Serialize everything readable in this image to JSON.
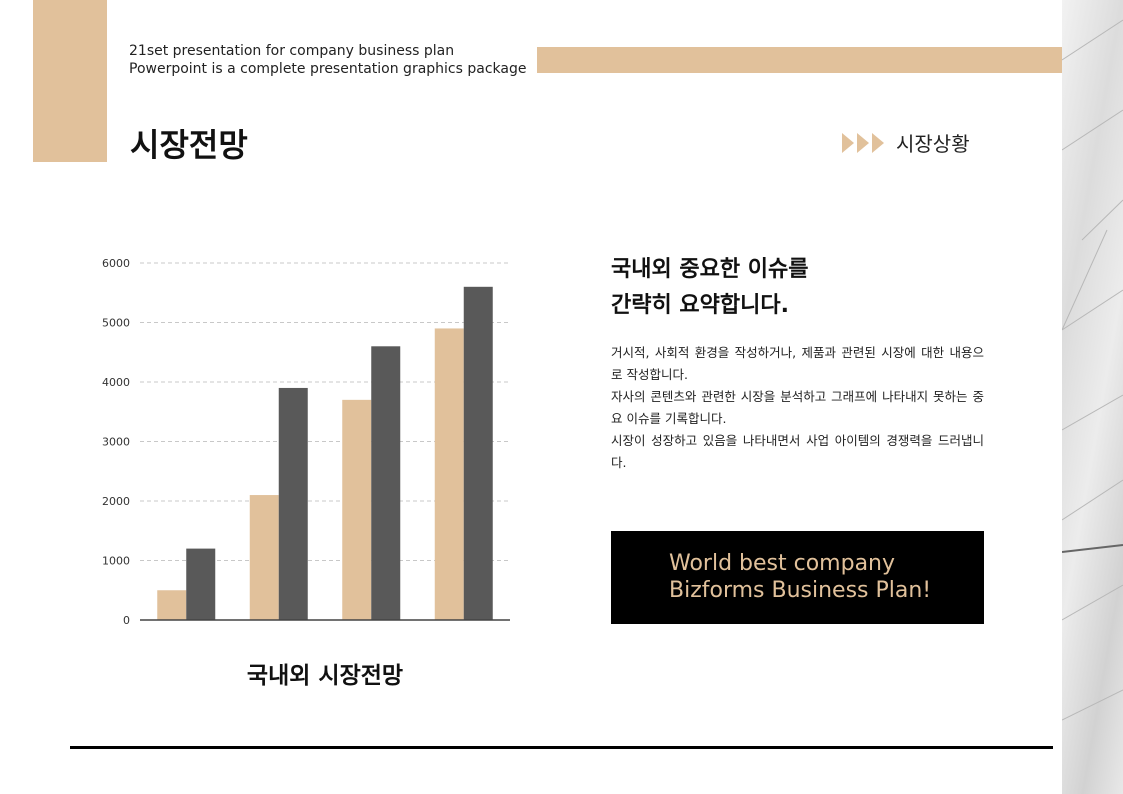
{
  "header": {
    "subtitle_lines": [
      "21set presentation for company business plan",
      "Powerpoint is a  complete presentation graphics package"
    ],
    "title": "시장전망",
    "section_label": "시장상황"
  },
  "content": {
    "headline_lines": [
      "국내외 중요한 이슈를",
      "간략히 요약합니다."
    ],
    "paragraphs": [
      "거시적, 사회적 환경을 작성하거나, 제품과 관련된 시장에 대한 내용으로 작성합니다.",
      "자사의 콘텐츠와 관련한 시장을 분석하고 그래프에 나타내지 못하는 중요 이슈를 기록합니다.",
      "시장이 성장하고 있음을 나타내면서 사업 아이템의 경쟁력을 드러냅니다."
    ],
    "promo_lines": [
      "World best company",
      "Bizforms Business Plan!"
    ]
  },
  "chart_data": {
    "type": "bar",
    "title": "국내외 시장전망",
    "categories": [
      "",
      "",
      "",
      ""
    ],
    "series": [
      {
        "values": [
          500,
          2100,
          3700,
          4900
        ],
        "color": "#e1c19b"
      },
      {
        "values": [
          1200,
          3900,
          4600,
          5600
        ],
        "color": "#595959"
      }
    ],
    "ylim": [
      0,
      6000
    ],
    "yticks": [
      0,
      1000,
      2000,
      3000,
      4000,
      5000,
      6000
    ],
    "grid": true,
    "xlabel": "",
    "ylabel": ""
  },
  "colors": {
    "accent": "#e1c19b",
    "dark": "#595959",
    "black": "#000000"
  },
  "icons": {
    "section_arrows": "triangle-right-icon"
  }
}
